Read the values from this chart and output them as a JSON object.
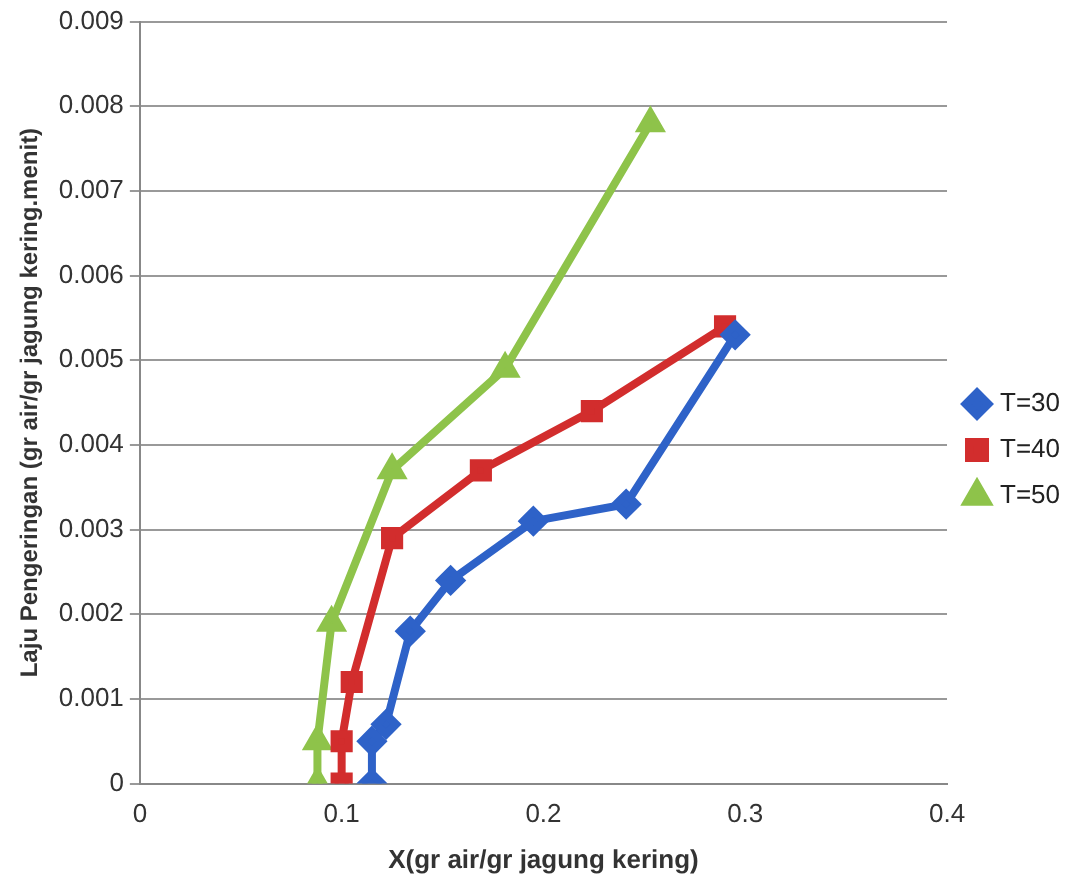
{
  "chart_data": {
    "type": "line",
    "xlabel": "X(gr air/gr jagung kering)",
    "ylabel": "Laju Pengeringan (gr air/gr jagung kering.menit)",
    "xlim": [
      0,
      0.4
    ],
    "xticks": [
      0,
      0.1,
      0.2,
      0.3,
      0.4
    ],
    "ylim": [
      0,
      0.009
    ],
    "yticks": [
      0,
      0.001,
      0.002,
      0.003,
      0.004,
      0.005,
      0.006,
      0.007,
      0.008,
      0.009
    ],
    "grid": "y",
    "legend": "right",
    "series": [
      {
        "name": "T=30",
        "color": "#2e62c8",
        "marker": "diamond",
        "x": [
          0.115,
          0.115,
          0.122,
          0.134,
          0.154,
          0.195,
          0.241,
          0.295
        ],
        "values": [
          0,
          0.0005,
          0.0007,
          0.0018,
          0.0024,
          0.0031,
          0.0033,
          0.0053
        ]
      },
      {
        "name": "T=40",
        "color": "#d22d2d",
        "marker": "square",
        "x": [
          0.1,
          0.1,
          0.105,
          0.125,
          0.169,
          0.224,
          0.29
        ],
        "values": [
          0,
          0.0005,
          0.0012,
          0.0029,
          0.0037,
          0.0044,
          0.0054
        ]
      },
      {
        "name": "T=50",
        "color": "#8ec34a",
        "marker": "triangle",
        "x": [
          0.088,
          0.088,
          0.095,
          0.125,
          0.181,
          0.253
        ],
        "values": [
          0,
          0.0005,
          0.0019,
          0.0037,
          0.0049,
          0.0078
        ]
      }
    ]
  }
}
